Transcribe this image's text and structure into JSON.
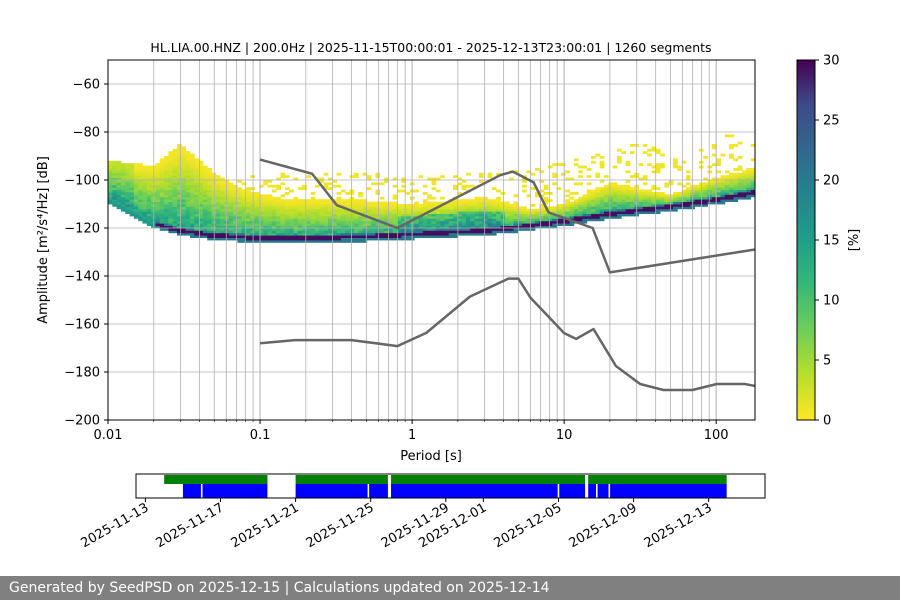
{
  "chart_data": [
    {
      "type": "heatmap",
      "title": "HL.LIA.00.HNZ | 200.0Hz | 2025-11-15T00:00:01 - 2025-12-13T23:00:01 | 1260 segments",
      "xlabel": "Period [s]",
      "ylabel": "Amplitude [m²/s⁴/Hz] [dB]",
      "x_scale": "log",
      "xlim": [
        0.01,
        180
      ],
      "ylim": [
        -200,
        -50
      ],
      "x_ticks": [
        0.01,
        0.1,
        1,
        10,
        100
      ],
      "x_tick_labels": [
        "0.01",
        "0.1",
        "1",
        "10",
        "100"
      ],
      "y_ticks": [
        -200,
        -180,
        -160,
        -140,
        -120,
        -100,
        -80,
        -60
      ],
      "y_tick_labels": [
        "−200",
        "−180",
        "−160",
        "−140",
        "−120",
        "−100",
        "−80",
        "−60"
      ],
      "grid": true,
      "colormap": "viridis_r",
      "colorbar": {
        "label": "[%]",
        "range": [
          0,
          30
        ],
        "ticks": [
          0,
          5,
          10,
          15,
          20,
          25,
          30
        ],
        "tick_labels": [
          "0",
          "5",
          "10",
          "15",
          "20",
          "25",
          "30"
        ]
      },
      "mode_curve": [
        {
          "x": 0.01,
          "y": -108
        },
        {
          "x": 0.015,
          "y": -114
        },
        {
          "x": 0.02,
          "y": -118
        },
        {
          "x": 0.03,
          "y": -121
        },
        {
          "x": 0.05,
          "y": -123
        },
        {
          "x": 0.1,
          "y": -124
        },
        {
          "x": 0.2,
          "y": -124
        },
        {
          "x": 0.5,
          "y": -123.5
        },
        {
          "x": 1,
          "y": -122.5
        },
        {
          "x": 2,
          "y": -121.5
        },
        {
          "x": 3,
          "y": -121
        },
        {
          "x": 5,
          "y": -119.5
        },
        {
          "x": 10,
          "y": -117
        },
        {
          "x": 20,
          "y": -114
        },
        {
          "x": 50,
          "y": -111
        },
        {
          "x": 100,
          "y": -108
        },
        {
          "x": 180,
          "y": -105
        }
      ],
      "upper_band": [
        {
          "x": 0.01,
          "y": -92
        },
        {
          "x": 0.02,
          "y": -94
        },
        {
          "x": 0.03,
          "y": -85
        },
        {
          "x": 0.05,
          "y": -97
        },
        {
          "x": 0.08,
          "y": -104
        },
        {
          "x": 0.15,
          "y": -108
        },
        {
          "x": 0.4,
          "y": -108
        },
        {
          "x": 1,
          "y": -110
        },
        {
          "x": 3,
          "y": -107
        },
        {
          "x": 6,
          "y": -112
        },
        {
          "x": 10,
          "y": -110
        },
        {
          "x": 20,
          "y": -101
        },
        {
          "x": 50,
          "y": -106
        },
        {
          "x": 100,
          "y": -99
        },
        {
          "x": 180,
          "y": -95
        }
      ],
      "sparse_upper_limit": [
        {
          "x": 0.3,
          "y": -97
        },
        {
          "x": 1,
          "y": -97
        },
        {
          "x": 4,
          "y": -97
        },
        {
          "x": 15,
          "y": -90
        },
        {
          "x": 30,
          "y": -84
        },
        {
          "x": 60,
          "y": -90
        },
        {
          "x": 100,
          "y": -82
        },
        {
          "x": 180,
          "y": -80
        }
      ],
      "series": [
        {
          "name": "NHNM",
          "color": "#666666",
          "x": [
            0.1,
            0.22,
            0.32,
            0.8,
            3.8,
            4.6,
            6.3,
            7.9,
            15.4,
            20,
            354.8
          ],
          "y": [
            -91.5,
            -97.4,
            -110.5,
            -120,
            -98,
            -96.5,
            -101,
            -113.5,
            -120,
            -138.5,
            -126
          ]
        },
        {
          "name": "NLNM",
          "color": "#666666",
          "x": [
            0.1,
            0.17,
            0.4,
            0.8,
            1.24,
            2.4,
            4.3,
            5,
            6,
            10,
            12,
            15.6,
            21.9,
            31.6,
            45,
            70,
            101,
            154,
            180
          ],
          "y": [
            -168,
            -166.7,
            -166.7,
            -169.2,
            -163.7,
            -148.6,
            -141.1,
            -141.1,
            -149,
            -163.8,
            -166.2,
            -162.1,
            -177.5,
            -185,
            -187.5,
            -187.5,
            -185,
            -185,
            -185.8
          ]
        }
      ]
    },
    {
      "type": "timeline",
      "x_range": [
        "2025-11-12T12:00:00",
        "2025-12-16T00:00:00"
      ],
      "x_ticks": [
        "2025-11-13",
        "2025-11-17",
        "2025-11-21",
        "2025-11-25",
        "2025-11-29",
        "2025-12-01",
        "2025-12-05",
        "2025-12-09",
        "2025-12-13"
      ],
      "x_tick_labels": [
        "2025-11-13",
        "2025-11-17",
        "2025-11-21",
        "2025-11-25",
        "2025-11-29",
        "2025-12-01",
        "2025-12-05",
        "2025-12-09",
        "2025-12-13"
      ],
      "series": [
        {
          "name": "data",
          "color": "#008000",
          "segments": [
            [
              "2025-11-14T00:00",
              "2025-11-19T12:00"
            ],
            [
              "2025-11-21T00:00",
              "2025-11-25T22:00"
            ],
            [
              "2025-11-26T02:00",
              "2025-12-06T10:00"
            ],
            [
              "2025-12-06T14:00",
              "2025-12-13T23:00"
            ]
          ]
        },
        {
          "name": "psd",
          "color": "#0000ff",
          "segments": [
            [
              "2025-11-15T00:00",
              "2025-11-15T23:00"
            ],
            [
              "2025-11-16T01:00",
              "2025-11-19T12:00"
            ],
            [
              "2025-11-21T00:00",
              "2025-11-24T20:00"
            ],
            [
              "2025-11-24T22:00",
              "2025-11-25T22:00"
            ],
            [
              "2025-11-26T02:00",
              "2025-12-04T23:00"
            ],
            [
              "2025-12-05T01:00",
              "2025-12-06T10:00"
            ],
            [
              "2025-12-06T14:00",
              "2025-12-07T00:00"
            ],
            [
              "2025-12-07T02:00",
              "2025-12-07T16:00"
            ],
            [
              "2025-12-07T18:00",
              "2025-12-13T23:00"
            ]
          ]
        }
      ]
    }
  ],
  "footer": {
    "text": "Generated by SeedPSD on 2025-12-15 | Calculations updated on 2025-12-14"
  }
}
